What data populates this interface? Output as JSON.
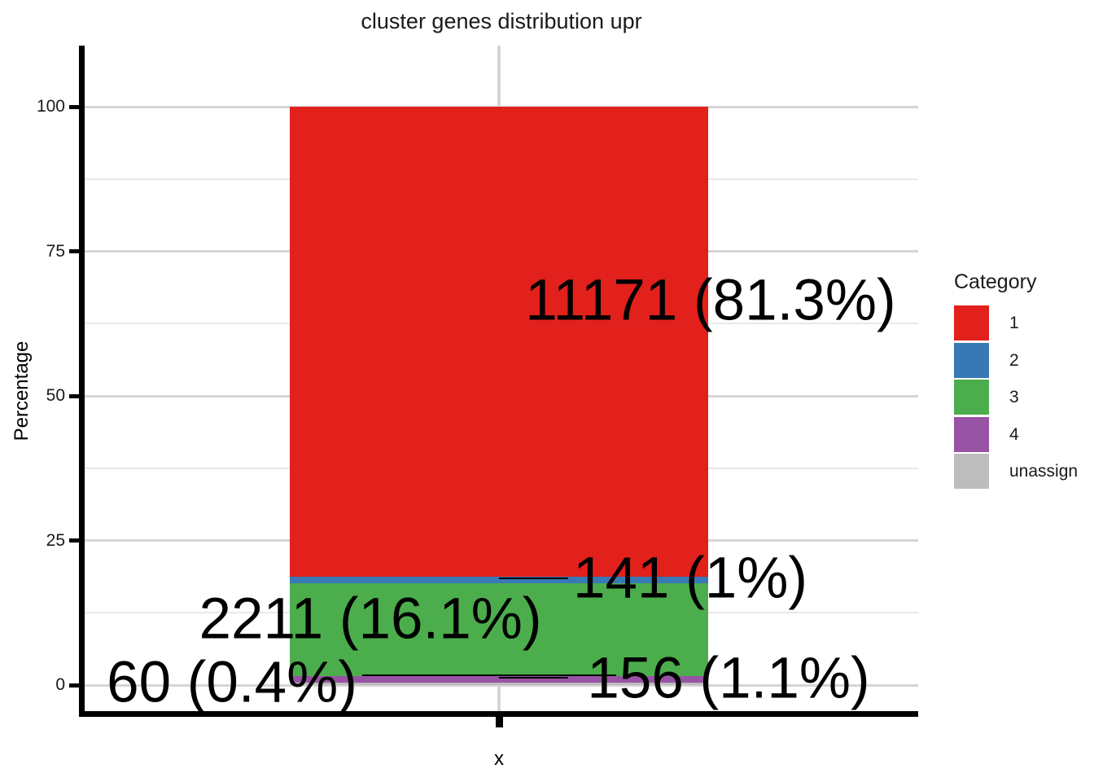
{
  "chart_data": {
    "type": "bar",
    "stacked": true,
    "title": "cluster genes distribution upr",
    "xlabel": "x",
    "ylabel": "Percentage",
    "categories": [
      "x"
    ],
    "ylim": [
      0,
      100
    ],
    "yticks": [
      0,
      25,
      50,
      75,
      100
    ],
    "yticks_minor": [
      12.5,
      37.5,
      62.5,
      87.5
    ],
    "grid": true,
    "legend_position": "right",
    "legend_title": "Category",
    "series": [
      {
        "name": "1",
        "color": "#e2201c",
        "count": 11171,
        "percent": 81.3,
        "label": "11171 (81.3%)"
      },
      {
        "name": "2",
        "color": "#3878b4",
        "count": 141,
        "percent": 1.0,
        "label": "141 (1%)"
      },
      {
        "name": "3",
        "color": "#4cad4c",
        "count": 2211,
        "percent": 16.1,
        "label": "2211 (16.1%)"
      },
      {
        "name": "4",
        "color": "#9853a4",
        "count": 156,
        "percent": 1.1,
        "label": "156 (1.1%)"
      },
      {
        "name": "unassign",
        "color": "#bdbdbd",
        "count": 60,
        "percent": 0.4,
        "label": "60 (0.4%)"
      }
    ],
    "stack_order_bottom_to_top": [
      "unassign",
      "4",
      "3",
      "2",
      "1"
    ]
  }
}
